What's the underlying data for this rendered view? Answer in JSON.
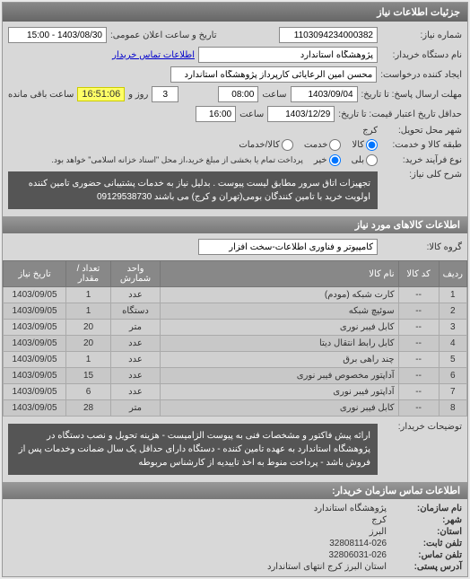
{
  "panel_title": "جزئیات اطلاعات نیاز",
  "form": {
    "need_no_label": "شماره نیاز:",
    "need_no": "1103094234000382",
    "announce_label": "تاریخ و ساعت اعلان عمومی:",
    "announce_date": "1403/08/30 - 15:00",
    "buyer_org_label": "نام دستگاه خریدار:",
    "buyer_org": "پژوهشگاه استاندارد",
    "buyer_contact_link": "اطلاعات تماس خریدار",
    "creator_label": "ایجاد کننده درخواست:",
    "creator": "محسن امین الرعایائی کارپرداز پژوهشگاه استاندارد",
    "deadline_send_label": "مهلت ارسال پاسخ: تا تاریخ:",
    "deadline_send_date": "1403/09/04",
    "time_label": "ساعت",
    "deadline_send_time": "08:00",
    "days_word": "روز و",
    "days_remain": "3",
    "countdown": "16:51:06",
    "remain_label": "ساعت باقی مانده",
    "validity_label": "حداقل تاریخ اعتبار قیمت: تا تاریخ:",
    "validity_date": "1403/12/29",
    "validity_time": "16:00",
    "delivery_city_label": "شهر محل تحویل:",
    "delivery_city": "کرج",
    "goods_type_label": "طبقه کالا و خدمت:",
    "r_goods": "کالا",
    "r_service": "خدمت",
    "r_both": "کالا/خدمات",
    "process_type_label": "نوع فرآیند خرید:",
    "r_full_pay": "پرداخت تمام یا بخشی از مبلغ خرید،از محل \"اسناد خزانه اسلامی\" خواهد بود.",
    "r_yes": "بلی",
    "r_no": "خیر",
    "desc_label": "شرح کلی نیاز:",
    "desc_text": "تجهیزات اتاق سرور مطابق لیست پیوست . بدلیل نیاز به خدمات پشتیبانی حضوری تامین کننده اولویت خرید با تامین کنندگان بومی(تهران و کرج) می باشند 09129538730"
  },
  "items_section": {
    "header": "اطلاعات کالاهای مورد نیاز",
    "group_label": "گروه کالا:",
    "group_value": "کامپیوتر و فناوری اطلاعات-سخت افزار",
    "columns": [
      "ردیف",
      "کد کالا",
      "نام کالا",
      "واحد شمارش",
      "تعداد / مقدار",
      "تاریخ نیاز"
    ],
    "rows": [
      {
        "idx": "1",
        "code": "--",
        "name": "کارت شبکه (مودم)",
        "unit": "عدد",
        "qty": "1",
        "date": "1403/09/05"
      },
      {
        "idx": "2",
        "code": "--",
        "name": "سوئیچ شبکه",
        "unit": "دستگاه",
        "qty": "1",
        "date": "1403/09/05"
      },
      {
        "idx": "3",
        "code": "--",
        "name": "کابل فیبر نوری",
        "unit": "متر",
        "qty": "20",
        "date": "1403/09/05"
      },
      {
        "idx": "4",
        "code": "--",
        "name": "کابل رابط انتقال دیتا",
        "unit": "عدد",
        "qty": "20",
        "date": "1403/09/05"
      },
      {
        "idx": "5",
        "code": "--",
        "name": "چند راهی برق",
        "unit": "عدد",
        "qty": "1",
        "date": "1403/09/05"
      },
      {
        "idx": "6",
        "code": "--",
        "name": "آداپتور مخصوص فیبر نوری",
        "unit": "عدد",
        "qty": "15",
        "date": "1403/09/05"
      },
      {
        "idx": "7",
        "code": "--",
        "name": "آداپتور فیبر نوری",
        "unit": "عدد",
        "qty": "6",
        "date": "1403/09/05"
      },
      {
        "idx": "8",
        "code": "--",
        "name": "کابل فیبر نوری",
        "unit": "متر",
        "qty": "28",
        "date": "1403/09/05"
      }
    ],
    "notes_label": "توضیحات خریدار:",
    "notes_text": "ارائه پیش فاکتور و مشخصات فنی به پیوست الزامیست - هزینه تحویل و نصب دستگاه در پژوهشگاه استاندارد به عهده تامین کننده - دستگاه دارای حداقل یک سال ضمانت وخدمات پس از فروش باشد - پرداخت منوط به اخذ تاییدیه از کارشناس مربوطه"
  },
  "footer": {
    "header": "اطلاعات تماس سازمان خریدار:",
    "org_label": "نام سازمان:",
    "org": "پژوهشگاه استاندارد",
    "city_label": "شهر:",
    "city": "کرج",
    "province_label": "استان:",
    "province": "البرز",
    "phone_label": "تلفن ثابت:",
    "phone": "32808114-026",
    "fax_label": "تلفن تماس:",
    "fax": "32806031-026",
    "addr_label": "آدرس پستی:",
    "addr": "استان البرز کرج انتهای استاندارد"
  }
}
